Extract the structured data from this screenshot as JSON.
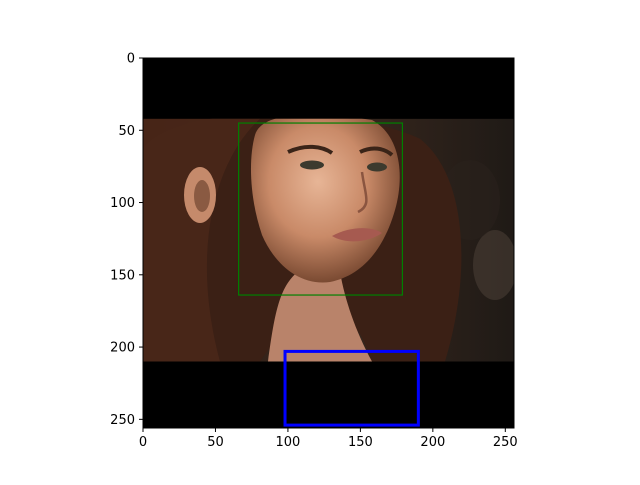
{
  "chart_data": {
    "type": "image",
    "title": "",
    "xlabel": "",
    "ylabel": "",
    "xlim": [
      0,
      256
    ],
    "ylim": [
      256,
      0
    ],
    "grid": false,
    "xticks": [
      0,
      50,
      100,
      150,
      200,
      250
    ],
    "yticks": [
      0,
      50,
      100,
      150,
      200,
      250
    ],
    "image": {
      "photo_rows": [
        42,
        210
      ],
      "background": "#000000"
    },
    "rectangles": [
      {
        "x0": 66,
        "y0": 45,
        "x1": 179,
        "y1": 164,
        "color": "#008000"
      },
      {
        "x0": 98,
        "y0": 203,
        "x1": 190,
        "y1": 254,
        "color": "#0000ff"
      }
    ]
  }
}
